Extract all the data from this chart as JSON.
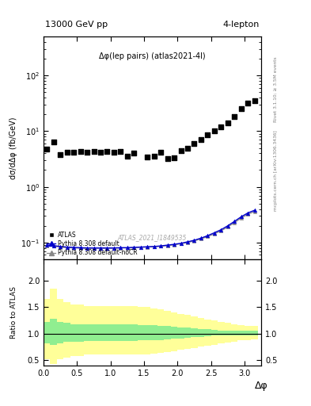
{
  "title_left": "13000 GeV pp",
  "title_right": "4-lepton",
  "plot_label": "Δφ(lep pairs) (atlas2021-4l)",
  "watermark": "ATLAS_2021_I1849535",
  "right_label_top": "Rivet 3.1.10; ≥ 3.5M events",
  "right_label_bot": "mcplots.cern.ch [arXiv:1306.3436]",
  "xlabel": "Δφ",
  "ylabel_main": "dσ/dΔφ (fb/GeV)",
  "ylabel_ratio": "Ratio to ATLAS",
  "atlas_x": [
    0.05,
    0.15,
    0.25,
    0.35,
    0.45,
    0.55,
    0.65,
    0.75,
    0.85,
    0.95,
    1.05,
    1.15,
    1.25,
    1.35,
    1.55,
    1.65,
    1.75,
    1.85,
    1.95,
    2.05,
    2.15,
    2.25,
    2.35,
    2.45,
    2.55,
    2.65,
    2.75,
    2.85,
    2.95,
    3.05,
    3.15
  ],
  "atlas_y": [
    4.8,
    6.5,
    3.8,
    4.2,
    4.2,
    4.3,
    4.2,
    4.3,
    4.2,
    4.3,
    4.2,
    4.3,
    3.5,
    4.0,
    3.4,
    3.5,
    4.2,
    3.2,
    3.3,
    4.5,
    5.0,
    6.0,
    7.0,
    8.5,
    10.0,
    12.0,
    14.0,
    18.0,
    25.0,
    32.0,
    35.0
  ],
  "pythia_x": [
    0.05,
    0.15,
    0.25,
    0.35,
    0.45,
    0.55,
    0.65,
    0.75,
    0.85,
    0.95,
    1.05,
    1.15,
    1.25,
    1.35,
    1.45,
    1.55,
    1.65,
    1.75,
    1.85,
    1.95,
    2.05,
    2.15,
    2.25,
    2.35,
    2.45,
    2.55,
    2.65,
    2.75,
    2.85,
    2.95,
    3.05,
    3.15
  ],
  "pythia_default_y": [
    0.09,
    0.088,
    0.085,
    0.083,
    0.082,
    0.081,
    0.08,
    0.08,
    0.08,
    0.08,
    0.08,
    0.081,
    0.081,
    0.082,
    0.083,
    0.084,
    0.085,
    0.087,
    0.09,
    0.093,
    0.097,
    0.103,
    0.11,
    0.12,
    0.133,
    0.15,
    0.17,
    0.2,
    0.24,
    0.29,
    0.34,
    0.38
  ],
  "pythia_noCR_y": [
    0.088,
    0.086,
    0.083,
    0.081,
    0.08,
    0.079,
    0.079,
    0.079,
    0.079,
    0.079,
    0.079,
    0.08,
    0.08,
    0.081,
    0.082,
    0.083,
    0.084,
    0.086,
    0.088,
    0.091,
    0.095,
    0.1,
    0.107,
    0.116,
    0.128,
    0.143,
    0.162,
    0.19,
    0.228,
    0.275,
    0.322,
    0.36
  ],
  "ratio_x": [
    0.05,
    0.15,
    0.25,
    0.35,
    0.45,
    0.55,
    0.65,
    0.75,
    0.85,
    0.95,
    1.05,
    1.15,
    1.25,
    1.35,
    1.45,
    1.55,
    1.65,
    1.75,
    1.85,
    1.95,
    2.05,
    2.15,
    2.25,
    2.35,
    2.45,
    2.55,
    2.65,
    2.75,
    2.85,
    2.95,
    3.05,
    3.15
  ],
  "ratio_green_lo": [
    0.82,
    0.78,
    0.82,
    0.84,
    0.85,
    0.85,
    0.86,
    0.86,
    0.86,
    0.86,
    0.86,
    0.86,
    0.86,
    0.86,
    0.87,
    0.87,
    0.87,
    0.88,
    0.89,
    0.9,
    0.91,
    0.92,
    0.93,
    0.94,
    0.95,
    0.96,
    0.97,
    0.97,
    0.97,
    0.97,
    0.97,
    0.97
  ],
  "ratio_green_hi": [
    1.22,
    1.28,
    1.22,
    1.2,
    1.18,
    1.18,
    1.17,
    1.17,
    1.17,
    1.17,
    1.17,
    1.17,
    1.17,
    1.17,
    1.16,
    1.16,
    1.16,
    1.15,
    1.14,
    1.13,
    1.12,
    1.11,
    1.1,
    1.09,
    1.08,
    1.07,
    1.06,
    1.06,
    1.06,
    1.06,
    1.06,
    1.06
  ],
  "ratio_yellow_lo": [
    0.52,
    0.42,
    0.52,
    0.55,
    0.58,
    0.58,
    0.6,
    0.6,
    0.6,
    0.6,
    0.6,
    0.6,
    0.6,
    0.6,
    0.61,
    0.61,
    0.62,
    0.63,
    0.65,
    0.67,
    0.69,
    0.71,
    0.73,
    0.75,
    0.77,
    0.79,
    0.81,
    0.83,
    0.85,
    0.87,
    0.88,
    0.89
  ],
  "ratio_yellow_hi": [
    1.65,
    1.85,
    1.65,
    1.6,
    1.55,
    1.55,
    1.52,
    1.52,
    1.52,
    1.52,
    1.52,
    1.52,
    1.52,
    1.52,
    1.5,
    1.5,
    1.48,
    1.46,
    1.43,
    1.4,
    1.37,
    1.35,
    1.32,
    1.3,
    1.27,
    1.25,
    1.22,
    1.2,
    1.18,
    1.16,
    1.15,
    1.14
  ],
  "atlas_color": "#000000",
  "pythia_default_color": "#0000cc",
  "pythia_noCR_color": "#888888",
  "green_color": "#90ee90",
  "yellow_color": "#ffff99",
  "ylim_main": [
    0.05,
    500
  ],
  "ylim_ratio": [
    0.4,
    2.4
  ],
  "xlim": [
    0.0,
    3.25
  ],
  "yticks_ratio": [
    0.5,
    1.0,
    1.5,
    2.0
  ]
}
